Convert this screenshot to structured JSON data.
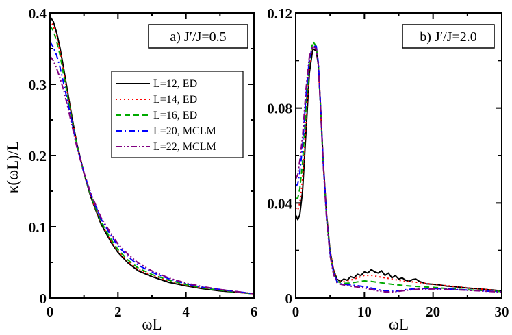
{
  "figure": {
    "ylabel": "κ(ωL)/L"
  },
  "chart_data": [
    {
      "type": "line",
      "title": "a)  J′/J=0.5",
      "xlabel": "ωL",
      "ylabel": "κ(ωL)/L",
      "xlim": [
        0,
        6
      ],
      "ylim": [
        0,
        0.4
      ],
      "xticks": [
        0,
        2,
        4,
        6
      ],
      "xtick_labels": [
        "0",
        "2",
        "4",
        "6"
      ],
      "yticks": [
        0,
        0.1,
        0.2,
        0.3,
        0.4
      ],
      "ytick_labels": [
        "0",
        "0.1",
        "0.2",
        "0.3",
        "0.4"
      ],
      "legend_position": "upper-right",
      "series": [
        {
          "name": "L=12,  ED",
          "color": "#000000",
          "dash": "solid",
          "x": [
            0,
            0.1,
            0.2,
            0.3,
            0.4,
            0.5,
            0.6,
            0.7,
            0.8,
            1.0,
            1.2,
            1.5,
            1.8,
            2.0,
            2.3,
            2.6,
            3.0,
            3.5,
            4.0,
            4.5,
            5.0,
            5.5,
            6.0
          ],
          "y": [
            0.395,
            0.388,
            0.372,
            0.35,
            0.323,
            0.295,
            0.267,
            0.24,
            0.215,
            0.175,
            0.142,
            0.104,
            0.078,
            0.064,
            0.049,
            0.038,
            0.03,
            0.022,
            0.017,
            0.013,
            0.01,
            0.008,
            0.006
          ]
        },
        {
          "name": "L=14,  ED",
          "color": "#ff0000",
          "dash": "dotted",
          "x": [
            0,
            0.1,
            0.2,
            0.3,
            0.4,
            0.5,
            0.6,
            0.7,
            0.8,
            1.0,
            1.2,
            1.5,
            1.8,
            2.0,
            2.3,
            2.6,
            3.0,
            3.5,
            4.0,
            4.5,
            5.0,
            5.5,
            6.0
          ],
          "y": [
            0.39,
            0.382,
            0.366,
            0.345,
            0.318,
            0.291,
            0.264,
            0.238,
            0.214,
            0.175,
            0.143,
            0.105,
            0.08,
            0.066,
            0.051,
            0.04,
            0.032,
            0.024,
            0.018,
            0.014,
            0.011,
            0.008,
            0.006
          ]
        },
        {
          "name": "L=16,  ED",
          "color": "#00aa00",
          "dash": "dashed",
          "x": [
            0,
            0.1,
            0.2,
            0.3,
            0.4,
            0.5,
            0.6,
            0.7,
            0.8,
            1.0,
            1.2,
            1.5,
            1.8,
            2.0,
            2.3,
            2.6,
            3.0,
            3.5,
            4.0,
            4.5,
            5.0,
            5.5,
            6.0
          ],
          "y": [
            0.382,
            0.375,
            0.36,
            0.34,
            0.314,
            0.288,
            0.262,
            0.237,
            0.213,
            0.175,
            0.144,
            0.107,
            0.082,
            0.068,
            0.053,
            0.042,
            0.033,
            0.025,
            0.019,
            0.014,
            0.011,
            0.008,
            0.006
          ]
        },
        {
          "name": "L=20,  MCLM",
          "color": "#0000ff",
          "dash": "dashdot",
          "x": [
            0,
            0.1,
            0.2,
            0.3,
            0.4,
            0.5,
            0.6,
            0.7,
            0.8,
            1.0,
            1.2,
            1.5,
            1.8,
            2.0,
            2.3,
            2.6,
            3.0,
            3.5,
            4.0,
            4.5,
            5.0,
            5.5,
            6.0
          ],
          "y": [
            0.36,
            0.352,
            0.34,
            0.323,
            0.302,
            0.28,
            0.257,
            0.234,
            0.212,
            0.176,
            0.146,
            0.111,
            0.087,
            0.073,
            0.058,
            0.046,
            0.036,
            0.027,
            0.02,
            0.015,
            0.012,
            0.009,
            0.006
          ]
        },
        {
          "name": "L=22,  MCLM",
          "color": "#800080",
          "dash": "dashdotdot",
          "x": [
            0,
            0.1,
            0.2,
            0.3,
            0.4,
            0.5,
            0.6,
            0.7,
            0.8,
            1.0,
            1.2,
            1.5,
            1.8,
            2.0,
            2.3,
            2.6,
            3.0,
            3.5,
            4.0,
            4.5,
            5.0,
            5.5,
            6.0
          ],
          "y": [
            0.34,
            0.333,
            0.322,
            0.308,
            0.292,
            0.273,
            0.252,
            0.231,
            0.21,
            0.176,
            0.147,
            0.113,
            0.09,
            0.076,
            0.061,
            0.049,
            0.038,
            0.028,
            0.021,
            0.016,
            0.012,
            0.009,
            0.006
          ]
        }
      ]
    },
    {
      "type": "line",
      "title": "b)  J′/J=2.0",
      "xlabel": "ωL",
      "ylabel": "",
      "xlim": [
        0,
        30
      ],
      "ylim": [
        0,
        0.12
      ],
      "xticks": [
        0,
        10,
        20,
        30
      ],
      "xtick_labels": [
        "0",
        "10",
        "20",
        "30"
      ],
      "yticks": [
        0,
        0.04,
        0.08,
        0.12
      ],
      "ytick_labels": [
        "0",
        "0.04",
        "0.08",
        "0.12"
      ],
      "legend_position": "none",
      "series": [
        {
          "name": "L=12,  ED",
          "color": "#000000",
          "dash": "solid",
          "x": [
            0,
            0.3,
            0.6,
            1.0,
            1.5,
            2.0,
            2.5,
            3.0,
            3.3,
            3.6,
            4.0,
            4.5,
            5.0,
            5.5,
            6.0,
            6.5,
            7.0,
            7.5,
            8.0,
            8.5,
            9.0,
            9.5,
            10.0,
            10.5,
            11.0,
            11.5,
            12.0,
            12.5,
            13.0,
            13.5,
            14.0,
            14.5,
            15.0,
            15.5,
            16.0,
            16.5,
            17.0,
            17.5,
            18.0,
            18.5,
            19.0,
            20.0,
            21.0,
            22.0,
            23.0,
            24.0,
            25.0,
            26.0,
            27.0,
            28.0,
            29.0,
            30.0
          ],
          "y": [
            0.035,
            0.033,
            0.035,
            0.045,
            0.07,
            0.095,
            0.105,
            0.104,
            0.098,
            0.082,
            0.058,
            0.035,
            0.02,
            0.012,
            0.008,
            0.007,
            0.008,
            0.0075,
            0.009,
            0.0085,
            0.01,
            0.0095,
            0.011,
            0.0105,
            0.012,
            0.011,
            0.0105,
            0.0115,
            0.0095,
            0.0105,
            0.0085,
            0.0095,
            0.008,
            0.0085,
            0.0075,
            0.007,
            0.0078,
            0.008,
            0.007,
            0.0065,
            0.006,
            0.0058,
            0.0055,
            0.005,
            0.0048,
            0.0045,
            0.0042,
            0.004,
            0.0038,
            0.0035,
            0.0033,
            0.003
          ]
        },
        {
          "name": "L=14,  ED",
          "color": "#ff0000",
          "dash": "dotted",
          "x": [
            0,
            0.3,
            0.6,
            1.0,
            1.5,
            2.0,
            2.5,
            3.0,
            3.3,
            3.6,
            4.0,
            4.5,
            5.0,
            5.5,
            6.0,
            6.5,
            7.0,
            8.0,
            9.0,
            10.0,
            11.0,
            12.0,
            13.0,
            14.0,
            15.0,
            16.0,
            17.0,
            18.0,
            20.0,
            22.0,
            24.0,
            26.0,
            28.0,
            30.0
          ],
          "y": [
            0.038,
            0.037,
            0.04,
            0.05,
            0.074,
            0.098,
            0.107,
            0.105,
            0.098,
            0.082,
            0.058,
            0.035,
            0.02,
            0.012,
            0.008,
            0.007,
            0.007,
            0.0075,
            0.0085,
            0.0095,
            0.0095,
            0.009,
            0.0085,
            0.008,
            0.0075,
            0.007,
            0.0068,
            0.0065,
            0.0058,
            0.0052,
            0.0046,
            0.004,
            0.0035,
            0.003
          ]
        },
        {
          "name": "L=16,  ED",
          "color": "#00aa00",
          "dash": "dashed",
          "x": [
            0,
            0.3,
            0.6,
            1.0,
            1.5,
            2.0,
            2.5,
            3.0,
            3.3,
            3.6,
            4.0,
            4.5,
            5.0,
            5.5,
            6.0,
            6.5,
            7.0,
            8.0,
            9.0,
            10.0,
            11.0,
            12.0,
            13.0,
            14.0,
            15.0,
            16.0,
            17.0,
            18.0,
            20.0,
            22.0,
            24.0,
            26.0,
            28.0,
            30.0
          ],
          "y": [
            0.042,
            0.042,
            0.046,
            0.057,
            0.08,
            0.1,
            0.108,
            0.106,
            0.098,
            0.081,
            0.057,
            0.034,
            0.019,
            0.011,
            0.007,
            0.0065,
            0.0062,
            0.0063,
            0.0068,
            0.0072,
            0.007,
            0.0066,
            0.0062,
            0.0058,
            0.0055,
            0.0052,
            0.005,
            0.0048,
            0.0045,
            0.004,
            0.0036,
            0.0033,
            0.003,
            0.0027
          ]
        },
        {
          "name": "L=20,  MCLM",
          "color": "#0000ff",
          "dash": "dashdot",
          "x": [
            0,
            0.3,
            0.6,
            1.0,
            1.5,
            2.0,
            2.5,
            3.0,
            3.3,
            3.6,
            4.0,
            4.5,
            5.0,
            5.5,
            6.0,
            6.5,
            7.0,
            8.0,
            9.0,
            10.0,
            11.0,
            12.0,
            13.0,
            14.0,
            15.0,
            16.0,
            17.0,
            18.0,
            20.0,
            22.0,
            24.0,
            26.0,
            28.0,
            30.0
          ],
          "y": [
            0.047,
            0.048,
            0.053,
            0.064,
            0.085,
            0.101,
            0.106,
            0.106,
            0.099,
            0.082,
            0.058,
            0.034,
            0.019,
            0.011,
            0.007,
            0.006,
            0.0058,
            0.0055,
            0.0052,
            0.0048,
            0.0042,
            0.0035,
            0.003,
            0.0028,
            0.003,
            0.0035,
            0.0038,
            0.004,
            0.004,
            0.0038,
            0.0035,
            0.0032,
            0.0029,
            0.0026
          ]
        },
        {
          "name": "L=22,  MCLM",
          "color": "#800080",
          "dash": "dashdotdot",
          "x": [
            0,
            0.3,
            0.6,
            1.0,
            1.5,
            2.0,
            2.5,
            3.0,
            3.3,
            3.6,
            4.0,
            4.5,
            5.0,
            5.5,
            6.0,
            6.5,
            7.0,
            8.0,
            9.0,
            10.0,
            11.0,
            12.0,
            13.0,
            14.0,
            15.0,
            16.0,
            17.0,
            18.0,
            20.0,
            22.0,
            24.0,
            26.0,
            28.0,
            30.0
          ],
          "y": [
            0.05,
            0.052,
            0.058,
            0.068,
            0.088,
            0.102,
            0.106,
            0.105,
            0.098,
            0.081,
            0.057,
            0.033,
            0.018,
            0.01,
            0.0065,
            0.0058,
            0.0055,
            0.005,
            0.0046,
            0.0042,
            0.0036,
            0.003,
            0.0026,
            0.0025,
            0.0028,
            0.0032,
            0.0035,
            0.0037,
            0.0038,
            0.0036,
            0.0034,
            0.0031,
            0.0028,
            0.0025
          ]
        }
      ]
    }
  ]
}
